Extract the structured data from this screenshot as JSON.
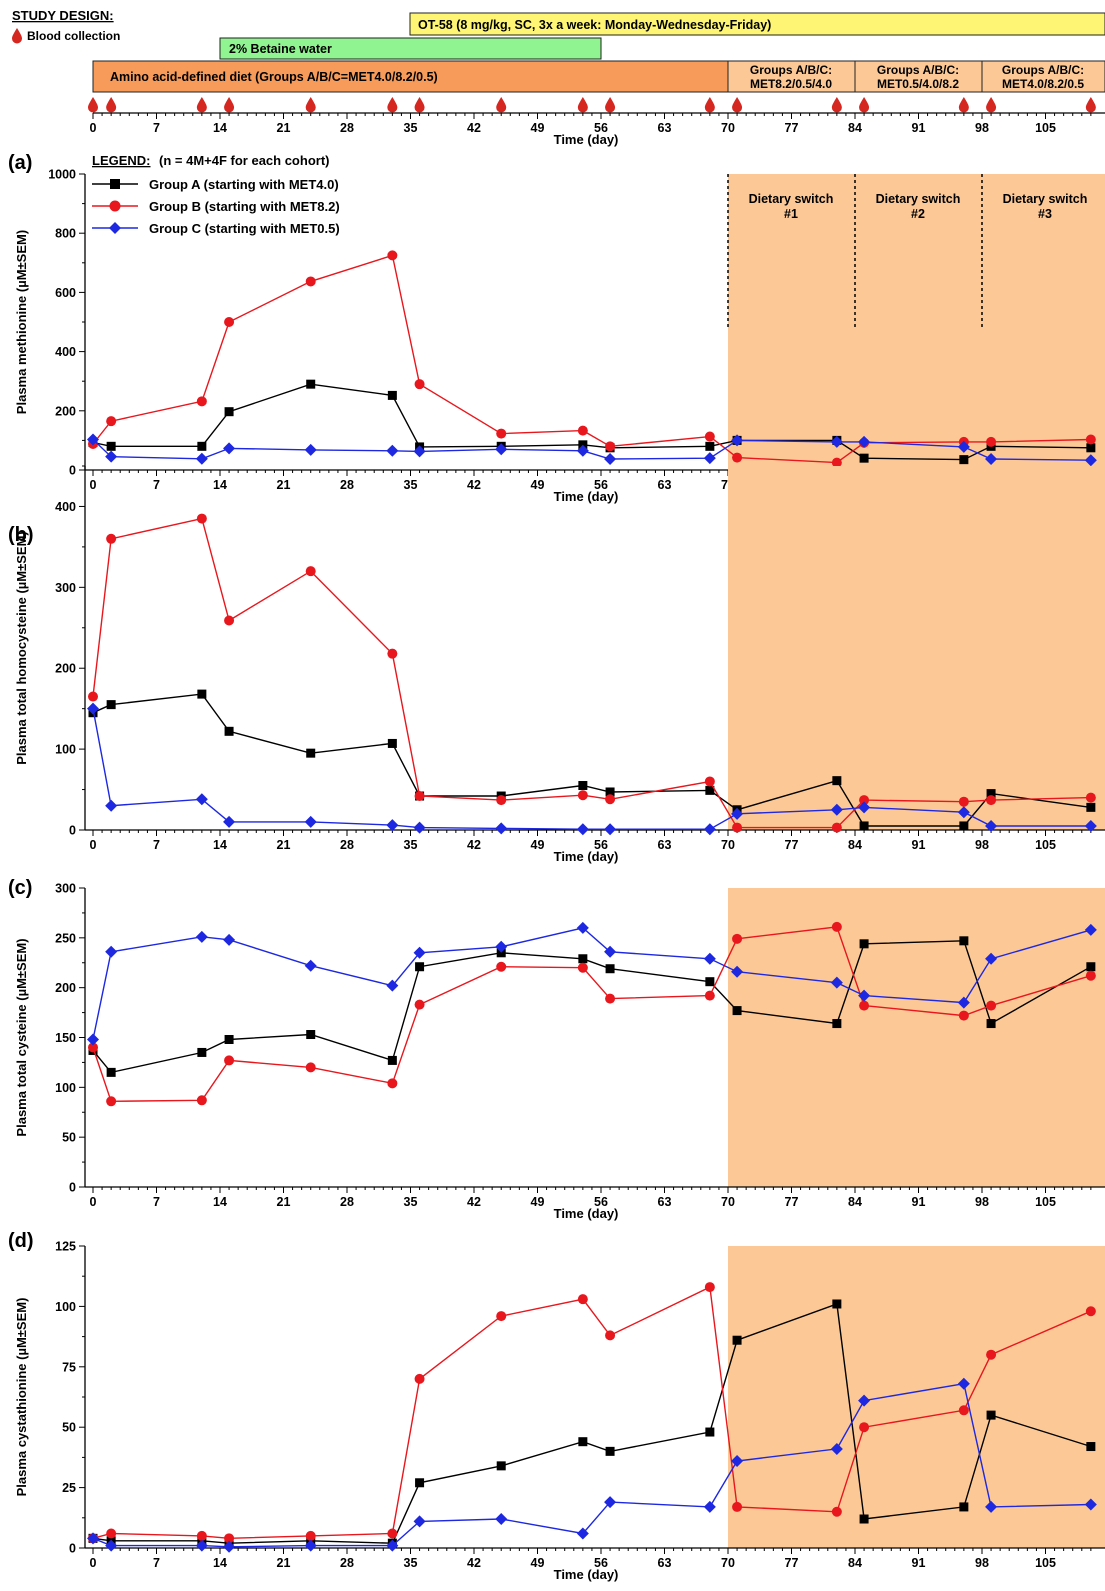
{
  "design": {
    "title": "STUDY DESIGN:",
    "blood_label": "Blood collection",
    "bars": {
      "ot58": "OT-58 (8 mg/kg, SC, 3x a week: Monday-Wednesday-Friday)",
      "betaine": "2% Betaine water",
      "diet": "Amino acid-defined diet (Groups A/B/C=MET4.0/8.2/0.5)",
      "sw1_l1": "Groups A/B/C:",
      "sw1_l2": "MET8.2/0.5/4.0",
      "sw2_l1": "Groups A/B/C:",
      "sw2_l2": "MET0.5/4.0/8.2",
      "sw3_l1": "Groups A/B/C:",
      "sw3_l2": "MET4.0/8.2/0.5"
    },
    "blood_days": [
      0,
      2,
      12,
      15,
      24,
      33,
      36,
      45,
      54,
      57,
      68,
      71,
      82,
      85,
      96,
      99,
      110
    ],
    "xlabel": "Time (day)"
  },
  "legend": {
    "title": "LEGEND:",
    "note": "(n = 4M+4F for each cohort)",
    "a": "Group A (starting with MET4.0)",
    "b": "Group B (starting with MET8.2)",
    "c": "Group C (starting with MET0.5)"
  },
  "switch_labels": {
    "s1_l1": "Dietary switch",
    "s1_l2": "#1",
    "s2_l1": "Dietary switch",
    "s2_l2": "#2",
    "s3_l1": "Dietary switch",
    "s3_l2": "#3"
  },
  "colors": {
    "groupA": "#000000",
    "groupB": "#e8171d",
    "groupC": "#1d28e0",
    "shade": "#fbc896",
    "ot58": "#fdf573",
    "betaine": "#90f490",
    "diet": "#f79b5b"
  },
  "chart_data": [
    {
      "type": "line",
      "panel": "(a)",
      "ylabel": "Plasma methionine (µM±SEM)",
      "xlabel": "Time (day)",
      "ylim": [
        0,
        1000
      ],
      "yticks": [
        0,
        200,
        400,
        600,
        800,
        1000
      ],
      "xticks": [
        0,
        7,
        14,
        21,
        28,
        35,
        42,
        49,
        56,
        63,
        70,
        77,
        84,
        91,
        98,
        105
      ],
      "shaded_from": 70,
      "switch_lines": [
        70,
        84,
        98
      ],
      "series": [
        {
          "name": "Group A (starting with MET4.0)",
          "x": [
            0,
            2,
            12,
            15,
            24,
            33,
            36,
            45,
            54,
            57,
            68,
            71,
            82,
            85,
            96,
            99,
            110
          ],
          "values": [
            93,
            80,
            80,
            197,
            290,
            252,
            78,
            80,
            85,
            75,
            80,
            100,
            100,
            40,
            35,
            80,
            75
          ]
        },
        {
          "name": "Group B (starting with MET8.2)",
          "x": [
            0,
            2,
            12,
            15,
            24,
            33,
            36,
            45,
            54,
            57,
            68,
            71,
            82,
            85,
            96,
            99,
            110
          ],
          "values": [
            88,
            165,
            232,
            500,
            637,
            725,
            290,
            123,
            133,
            80,
            113,
            42,
            25,
            92,
            95,
            95,
            103
          ]
        },
        {
          "name": "Group C (starting with MET0.5)",
          "x": [
            0,
            2,
            12,
            15,
            24,
            33,
            36,
            45,
            54,
            57,
            68,
            71,
            82,
            85,
            96,
            99,
            110
          ],
          "values": [
            103,
            45,
            38,
            73,
            68,
            65,
            63,
            70,
            65,
            37,
            40,
            100,
            95,
            95,
            78,
            37,
            33
          ]
        }
      ]
    },
    {
      "type": "line",
      "panel": "(b)",
      "ylabel": "Plasma total homocysteine (µM±SEM)",
      "xlabel": "Time (day)",
      "ylim": [
        0,
        450
      ],
      "yticks": [
        0,
        100,
        200,
        300,
        400
      ],
      "xticks": [
        0,
        7,
        14,
        21,
        28,
        35,
        42,
        49,
        56,
        63,
        70,
        77,
        84,
        91,
        98,
        105
      ],
      "shaded_from": 70,
      "series": [
        {
          "name": "Group A (starting with MET4.0)",
          "x": [
            0,
            2,
            12,
            15,
            24,
            33,
            36,
            45,
            54,
            57,
            68,
            71,
            82,
            85,
            96,
            99,
            110
          ],
          "values": [
            145,
            155,
            168,
            122,
            95,
            107,
            42,
            42,
            55,
            47,
            49,
            25,
            61,
            5,
            5,
            45,
            28
          ]
        },
        {
          "name": "Group B (starting with MET8.2)",
          "x": [
            0,
            2,
            12,
            15,
            24,
            33,
            36,
            45,
            54,
            57,
            68,
            71,
            82,
            85,
            96,
            99,
            110
          ],
          "values": [
            165,
            360,
            385,
            259,
            320,
            218,
            42,
            37,
            43,
            38,
            60,
            3,
            3,
            37,
            35,
            37,
            40
          ]
        },
        {
          "name": "Group C (starting with MET0.5)",
          "x": [
            0,
            2,
            12,
            15,
            24,
            33,
            36,
            45,
            54,
            57,
            68,
            71,
            82,
            85,
            96,
            99,
            110
          ],
          "values": [
            150,
            30,
            38,
            10,
            10,
            6,
            3,
            2,
            1,
            1,
            1,
            20,
            25,
            28,
            22,
            5,
            5
          ]
        }
      ]
    },
    {
      "type": "line",
      "panel": "(c)",
      "ylabel": "Plasma total cysteine (µM±SEM)",
      "xlabel": "Time (day)",
      "ylim": [
        0,
        300
      ],
      "yticks": [
        0,
        50,
        100,
        150,
        200,
        250,
        300
      ],
      "xticks": [
        0,
        7,
        14,
        21,
        28,
        35,
        42,
        49,
        56,
        63,
        70,
        77,
        84,
        91,
        98,
        105
      ],
      "shaded_from": 70,
      "series": [
        {
          "name": "Group A (starting with MET4.0)",
          "x": [
            0,
            2,
            12,
            15,
            24,
            33,
            36,
            45,
            54,
            57,
            68,
            71,
            82,
            85,
            96,
            99,
            110
          ],
          "values": [
            137,
            115,
            135,
            148,
            153,
            127,
            221,
            235,
            229,
            219,
            206,
            177,
            164,
            244,
            247,
            164,
            221
          ]
        },
        {
          "name": "Group B (starting with MET8.2)",
          "x": [
            0,
            2,
            12,
            15,
            24,
            33,
            36,
            45,
            54,
            57,
            68,
            71,
            82,
            85,
            96,
            99,
            110
          ],
          "values": [
            140,
            86,
            87,
            127,
            120,
            104,
            183,
            221,
            220,
            189,
            192,
            249,
            261,
            182,
            172,
            182,
            212
          ]
        },
        {
          "name": "Group C (starting with MET0.5)",
          "x": [
            0,
            2,
            12,
            15,
            24,
            33,
            36,
            45,
            54,
            57,
            68,
            71,
            82,
            85,
            96,
            99,
            110
          ],
          "values": [
            148,
            236,
            251,
            248,
            222,
            202,
            235,
            241,
            260,
            236,
            229,
            216,
            205,
            192,
            185,
            229,
            258
          ]
        }
      ]
    },
    {
      "type": "line",
      "panel": "(d)",
      "ylabel": "Plasma cystathionine (µM±SEM)",
      "xlabel": "Time (day)",
      "ylim": [
        0,
        125
      ],
      "yticks": [
        0,
        25,
        50,
        75,
        100,
        125
      ],
      "xticks": [
        0,
        7,
        14,
        21,
        28,
        35,
        42,
        49,
        56,
        63,
        70,
        77,
        84,
        91,
        98,
        105
      ],
      "shaded_from": 70,
      "series": [
        {
          "name": "Group A (starting with MET4.0)",
          "x": [
            0,
            2,
            12,
            15,
            24,
            33,
            36,
            45,
            54,
            57,
            68,
            71,
            82,
            85,
            96,
            99,
            110
          ],
          "values": [
            4,
            3,
            3,
            2,
            3,
            2,
            27,
            34,
            44,
            40,
            48,
            86,
            101,
            12,
            17,
            55,
            42
          ]
        },
        {
          "name": "Group B (starting with MET8.2)",
          "x": [
            0,
            2,
            12,
            15,
            24,
            33,
            36,
            45,
            54,
            57,
            68,
            71,
            82,
            85,
            96,
            99,
            110
          ],
          "values": [
            4,
            6,
            5,
            4,
            5,
            6,
            70,
            96,
            103,
            88,
            108,
            17,
            15,
            50,
            57,
            80,
            98
          ]
        },
        {
          "name": "Group C (starting with MET0.5)",
          "x": [
            0,
            2,
            12,
            15,
            24,
            33,
            36,
            45,
            54,
            57,
            68,
            71,
            82,
            85,
            96,
            99,
            110
          ],
          "values": [
            4,
            1,
            1,
            0.5,
            1,
            1,
            11,
            12,
            6,
            19,
            17,
            36,
            41,
            61,
            68,
            17,
            18
          ]
        }
      ]
    }
  ]
}
